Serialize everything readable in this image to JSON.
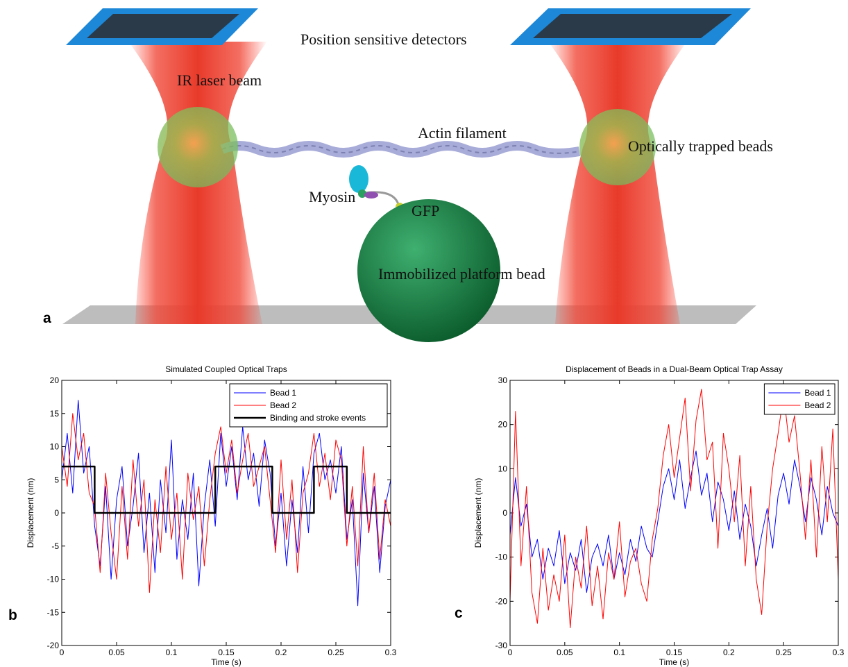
{
  "diagram": {
    "panel_label": "a",
    "labels": {
      "detectors": "Position sensitive detectors",
      "laser": "IR laser beam",
      "actin": "Actin filament",
      "beads": "Optically trapped beads",
      "myosin": "Myosin",
      "gfp": "GFP",
      "platform": "Immobilized platform bead"
    }
  },
  "chart_data": [
    {
      "type": "line",
      "panel_label": "b",
      "title": "Simulated Coupled Optical Traps",
      "xlabel": "Time (s)",
      "ylabel": "Displacement (nm)",
      "x": [
        0,
        0.005,
        0.01,
        0.015,
        0.02,
        0.025,
        0.03,
        0.035,
        0.04,
        0.045,
        0.05,
        0.055,
        0.06,
        0.065,
        0.07,
        0.075,
        0.08,
        0.085,
        0.09,
        0.095,
        0.1,
        0.105,
        0.11,
        0.115,
        0.12,
        0.125,
        0.13,
        0.135,
        0.14,
        0.145,
        0.15,
        0.155,
        0.16,
        0.165,
        0.17,
        0.175,
        0.18,
        0.185,
        0.19,
        0.195,
        0.2,
        0.205,
        0.21,
        0.215,
        0.22,
        0.225,
        0.23,
        0.235,
        0.24,
        0.245,
        0.25,
        0.255,
        0.26,
        0.265,
        0.27,
        0.275,
        0.28,
        0.285,
        0.29,
        0.295,
        0.3
      ],
      "xlim": [
        0,
        0.3
      ],
      "xticks": [
        0,
        0.05,
        0.1,
        0.15,
        0.2,
        0.25,
        0.3
      ],
      "ylim": [
        -20,
        20
      ],
      "yticks": [
        -20,
        -15,
        -10,
        -5,
        0,
        5,
        10,
        15,
        20
      ],
      "legend": "upper right",
      "series": [
        {
          "name": "Bead 1",
          "color": "#0000ff",
          "line_width": 1,
          "values": [
            5,
            12,
            3,
            17,
            6,
            10,
            -2,
            -8,
            4,
            -10,
            2,
            7,
            -5,
            1,
            9,
            -6,
            3,
            -9,
            5,
            -3,
            11,
            -7,
            2,
            -4,
            6,
            -11,
            1,
            8,
            -2,
            12,
            4,
            10,
            2,
            13,
            5,
            9,
            1,
            11,
            6,
            -5,
            3,
            -8,
            2,
            -6,
            7,
            -3,
            9,
            12,
            5,
            8,
            3,
            10,
            -4,
            2,
            -14,
            6,
            -3,
            4,
            -9,
            1,
            5
          ]
        },
        {
          "name": "Bead 2",
          "color": "#ff0000",
          "line_width": 1,
          "values": [
            10,
            4,
            15,
            8,
            12,
            3,
            1,
            -9,
            6,
            -3,
            -10,
            4,
            -7,
            8,
            -2,
            5,
            -12,
            2,
            -6,
            7,
            -4,
            3,
            -10,
            6,
            -1,
            4,
            -8,
            2,
            9,
            13,
            6,
            11,
            3,
            8,
            12,
            4,
            7,
            10,
            2,
            -6,
            8,
            -4,
            5,
            -9,
            3,
            6,
            12,
            4,
            9,
            2,
            11,
            8,
            -5,
            4,
            -8,
            10,
            -3,
            6,
            -7,
            2,
            -2
          ]
        },
        {
          "name": "Binding and stroke events",
          "color": "#000000",
          "line_width": 2.5,
          "x": [
            0,
            0.03,
            0.03,
            0.14,
            0.14,
            0.192,
            0.192,
            0.23,
            0.23,
            0.26,
            0.26,
            0.3
          ],
          "values": [
            7,
            7,
            0,
            0,
            7,
            7,
            0,
            0,
            7,
            7,
            0,
            0
          ]
        }
      ]
    },
    {
      "type": "line",
      "panel_label": "c",
      "title": "Displacement of Beads in a Dual-Beam Optical Trap Assay",
      "xlabel": "Time (s)",
      "ylabel": "Displacement (nm)",
      "x": [
        0,
        0.005,
        0.01,
        0.015,
        0.02,
        0.025,
        0.03,
        0.035,
        0.04,
        0.045,
        0.05,
        0.055,
        0.06,
        0.065,
        0.07,
        0.075,
        0.08,
        0.085,
        0.09,
        0.095,
        0.1,
        0.105,
        0.11,
        0.115,
        0.12,
        0.125,
        0.13,
        0.135,
        0.14,
        0.145,
        0.15,
        0.155,
        0.16,
        0.165,
        0.17,
        0.175,
        0.18,
        0.185,
        0.19,
        0.195,
        0.2,
        0.205,
        0.21,
        0.215,
        0.22,
        0.225,
        0.23,
        0.235,
        0.24,
        0.245,
        0.25,
        0.255,
        0.26,
        0.265,
        0.27,
        0.275,
        0.28,
        0.285,
        0.29,
        0.295,
        0.3
      ],
      "xlim": [
        0,
        0.3
      ],
      "xticks": [
        0,
        0.05,
        0.1,
        0.15,
        0.2,
        0.25,
        0.3
      ],
      "ylim": [
        -30,
        30
      ],
      "yticks": [
        -30,
        -20,
        -10,
        0,
        10,
        20,
        30
      ],
      "legend": "upper right",
      "series": [
        {
          "name": "Bead 1",
          "color": "#0000ff",
          "line_width": 1,
          "values": [
            -5,
            8,
            -3,
            2,
            -10,
            -6,
            -15,
            -8,
            -12,
            -4,
            -16,
            -9,
            -13,
            -6,
            -18,
            -10,
            -7,
            -12,
            -5,
            -15,
            -9,
            -14,
            -6,
            -11,
            -3,
            -8,
            -10,
            -2,
            6,
            10,
            3,
            12,
            1,
            8,
            14,
            4,
            9,
            -2,
            7,
            3,
            -4,
            5,
            -6,
            2,
            -3,
            -12,
            -5,
            1,
            -8,
            4,
            9,
            2,
            12,
            6,
            -2,
            8,
            3,
            -5,
            6,
            0,
            -3
          ]
        },
        {
          "name": "Bead 2",
          "color": "#ff0000",
          "line_width": 1,
          "values": [
            -20,
            23,
            -12,
            6,
            -18,
            -25,
            -8,
            -22,
            -14,
            -20,
            -5,
            -26,
            -10,
            -17,
            -3,
            -21,
            -12,
            -24,
            -9,
            -15,
            -2,
            -19,
            -11,
            -8,
            -16,
            -20,
            -6,
            1,
            13,
            20,
            8,
            17,
            26,
            5,
            21,
            28,
            12,
            16,
            -8,
            18,
            10,
            -2,
            13,
            -12,
            6,
            -15,
            -23,
            -3,
            10,
            18,
            27,
            16,
            22,
            9,
            -6,
            12,
            -10,
            15,
            -2,
            19,
            -15
          ]
        }
      ]
    }
  ]
}
